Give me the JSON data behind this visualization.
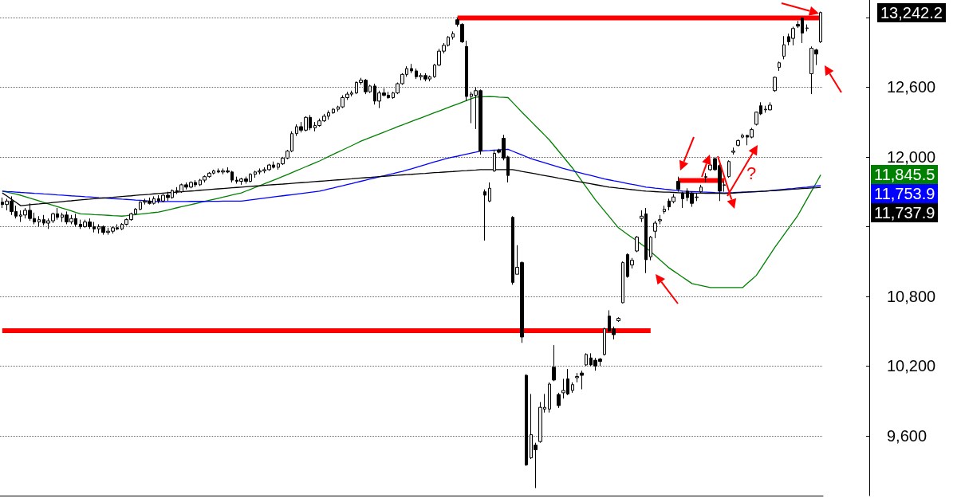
{
  "chart_data": {
    "type": "candlestick",
    "color": "#000000",
    "categories": [
      null,
      null,
      null,
      null,
      null,
      null,
      null,
      null,
      null,
      null,
      null,
      null,
      null,
      null,
      null,
      null,
      null,
      null,
      null,
      null,
      null,
      null,
      null,
      null,
      null,
      null,
      null,
      null,
      null,
      null,
      null,
      null,
      null,
      null,
      null,
      null,
      null,
      null,
      null,
      null,
      null,
      null,
      null,
      null,
      null,
      null,
      null,
      null,
      null,
      null,
      null,
      null,
      null,
      null,
      null,
      null,
      null,
      null,
      null,
      null,
      null,
      null,
      null,
      null,
      null,
      null,
      null,
      null,
      null,
      null,
      null,
      null,
      null,
      null,
      null,
      null,
      null,
      null,
      null,
      null,
      null,
      null,
      null,
      null,
      null,
      null,
      null,
      null,
      null,
      null,
      null,
      null,
      null,
      null,
      null,
      null,
      null,
      null,
      null,
      null,
      null,
      null,
      null,
      null,
      null,
      null,
      null,
      null,
      null,
      null,
      null,
      null,
      null,
      null,
      null,
      null,
      null,
      null,
      null,
      null,
      null,
      null,
      null,
      null,
      null,
      null,
      null,
      null,
      null,
      null,
      null,
      null,
      null,
      null,
      null,
      null,
      null,
      null,
      null,
      null,
      null,
      null,
      null,
      null,
      null,
      null,
      null,
      null,
      null,
      null,
      null,
      null,
      null,
      null,
      null,
      null,
      null,
      null,
      null,
      null,
      null,
      null,
      null,
      null,
      null,
      null,
      null,
      null,
      null,
      null,
      null,
      null,
      null,
      null,
      null,
      null,
      null,
      null,
      null
    ],
    "ohlc": [
      [
        11610,
        11650,
        11560,
        11590
      ],
      [
        11590,
        11640,
        11540,
        11620
      ],
      [
        11620,
        11660,
        11500,
        11530
      ],
      [
        11530,
        11580,
        11470,
        11490
      ],
      [
        11490,
        11540,
        11440,
        11500
      ],
      [
        11500,
        11560,
        11470,
        11540
      ],
      [
        11540,
        11600,
        11450,
        11470
      ],
      [
        11470,
        11520,
        11420,
        11440
      ],
      [
        11440,
        11490,
        11400,
        11460
      ],
      [
        11460,
        11500,
        11410,
        11430
      ],
      [
        11430,
        11470,
        11380,
        11450
      ],
      [
        11450,
        11520,
        11430,
        11510
      ],
      [
        11510,
        11560,
        11460,
        11480
      ],
      [
        11480,
        11520,
        11440,
        11500
      ],
      [
        11500,
        11530,
        11420,
        11440
      ],
      [
        11440,
        11500,
        11420,
        11470
      ],
      [
        11470,
        11510,
        11400,
        11420
      ],
      [
        11420,
        11460,
        11380,
        11400
      ],
      [
        11400,
        11460,
        11390,
        11440
      ],
      [
        11440,
        11470,
        11380,
        11400
      ],
      [
        11400,
        11440,
        11350,
        11380
      ],
      [
        11380,
        11420,
        11340,
        11400
      ],
      [
        11400,
        11410,
        11330,
        11350
      ],
      [
        11350,
        11390,
        11330,
        11360
      ],
      [
        11360,
        11400,
        11340,
        11390
      ],
      [
        11390,
        11420,
        11370,
        11380
      ],
      [
        11380,
        11430,
        11370,
        11420
      ],
      [
        11420,
        11470,
        11410,
        11460
      ],
      [
        11460,
        11520,
        11450,
        11510
      ],
      [
        11510,
        11560,
        11500,
        11550
      ],
      [
        11550,
        11620,
        11540,
        11610
      ],
      [
        11610,
        11640,
        11590,
        11620
      ],
      [
        11620,
        11650,
        11590,
        11600
      ],
      [
        11600,
        11660,
        11590,
        11640
      ],
      [
        11640,
        11670,
        11600,
        11620
      ],
      [
        11620,
        11680,
        11610,
        11670
      ],
      [
        11670,
        11700,
        11620,
        11650
      ],
      [
        11650,
        11720,
        11640,
        11710
      ],
      [
        11710,
        11740,
        11680,
        11700
      ],
      [
        11700,
        11770,
        11690,
        11760
      ],
      [
        11760,
        11780,
        11720,
        11740
      ],
      [
        11740,
        11790,
        11730,
        11780
      ],
      [
        11780,
        11800,
        11740,
        11760
      ],
      [
        11760,
        11810,
        11750,
        11800
      ],
      [
        11800,
        11840,
        11780,
        11830
      ],
      [
        11830,
        11870,
        11820,
        11860
      ],
      [
        11860,
        11890,
        11850,
        11880
      ],
      [
        11880,
        11900,
        11860,
        11870
      ],
      [
        11870,
        11900,
        11850,
        11880
      ],
      [
        11880,
        11910,
        11860,
        11870
      ],
      [
        11870,
        11880,
        11780,
        11800
      ],
      [
        11800,
        11830,
        11770,
        11790
      ],
      [
        11790,
        11820,
        11760,
        11810
      ],
      [
        11810,
        11830,
        11770,
        11790
      ],
      [
        11790,
        11860,
        11780,
        11850
      ],
      [
        11850,
        11880,
        11820,
        11870
      ],
      [
        11870,
        11900,
        11850,
        11880
      ],
      [
        11880,
        11910,
        11860,
        11890
      ],
      [
        11890,
        11940,
        11880,
        11930
      ],
      [
        11930,
        11960,
        11900,
        11910
      ],
      [
        11910,
        11950,
        11890,
        11940
      ],
      [
        11940,
        12000,
        11930,
        11990
      ],
      [
        11990,
        12060,
        11980,
        12050
      ],
      [
        12050,
        12220,
        12040,
        12200
      ],
      [
        12200,
        12280,
        12180,
        12260
      ],
      [
        12260,
        12300,
        12210,
        12230
      ],
      [
        12230,
        12350,
        12220,
        12340
      ],
      [
        12340,
        12360,
        12230,
        12250
      ],
      [
        12250,
        12300,
        12220,
        12270
      ],
      [
        12270,
        12330,
        12260,
        12310
      ],
      [
        12310,
        12370,
        12300,
        12350
      ],
      [
        12350,
        12400,
        12320,
        12380
      ],
      [
        12380,
        12420,
        12370,
        12410
      ],
      [
        12410,
        12440,
        12390,
        12430
      ],
      [
        12430,
        12530,
        12420,
        12510
      ],
      [
        12510,
        12560,
        12490,
        12540
      ],
      [
        12540,
        12570,
        12520,
        12550
      ],
      [
        12550,
        12650,
        12540,
        12640
      ],
      [
        12640,
        12680,
        12620,
        12660
      ],
      [
        12660,
        12670,
        12540,
        12560
      ],
      [
        12560,
        12620,
        12550,
        12610
      ],
      [
        12610,
        12630,
        12450,
        12480
      ],
      [
        12480,
        12570,
        12420,
        12550
      ],
      [
        12550,
        12590,
        12520,
        12530
      ],
      [
        12530,
        12560,
        12500,
        12510
      ],
      [
        12510,
        12560,
        12500,
        12550
      ],
      [
        12550,
        12640,
        12540,
        12630
      ],
      [
        12630,
        12720,
        12620,
        12710
      ],
      [
        12710,
        12780,
        12690,
        12760
      ],
      [
        12760,
        12800,
        12720,
        12740
      ],
      [
        12740,
        12760,
        12670,
        12690
      ],
      [
        12690,
        12720,
        12660,
        12700
      ],
      [
        12700,
        12720,
        12650,
        12670
      ],
      [
        12670,
        12700,
        12650,
        12690
      ],
      [
        12690,
        12800,
        12680,
        12790
      ],
      [
        12790,
        12930,
        12780,
        12910
      ],
      [
        12910,
        12980,
        12890,
        12960
      ],
      [
        12960,
        13040,
        12950,
        13030
      ],
      [
        13030,
        13080,
        13010,
        13060
      ],
      [
        13180,
        13200,
        13120,
        13140
      ],
      [
        13140,
        13150,
        12980,
        12990
      ],
      [
        12950,
        13000,
        12480,
        12520
      ],
      [
        12520,
        12560,
        12290,
        12540
      ],
      [
        12530,
        12600,
        12240,
        12570
      ],
      [
        12570,
        12580,
        12020,
        12050
      ],
      [
        11700,
        11720,
        11280,
        11670
      ],
      [
        11620,
        11780,
        11610,
        11730
      ],
      [
        11880,
        12060,
        11870,
        12030
      ],
      [
        12060,
        12070,
        12030,
        12040
      ],
      [
        12160,
        12190,
        11970,
        11990
      ],
      [
        12000,
        12010,
        11780,
        11840
      ],
      [
        11480,
        11490,
        10900,
        10920
      ],
      [
        10990,
        11240,
        10990,
        11050
      ],
      [
        11090,
        11100,
        10400,
        10450
      ],
      [
        10120,
        10130,
        9340,
        9350
      ],
      [
        9410,
        9960,
        9400,
        9610
      ],
      [
        9520,
        9540,
        9150,
        9480
      ],
      [
        9550,
        9890,
        9540,
        9845
      ],
      [
        9830,
        9960,
        9800,
        9845
      ],
      [
        9830,
        10060,
        9800,
        10045
      ],
      [
        10190,
        10380,
        10070,
        10080
      ],
      [
        9955,
        9970,
        9840,
        9860
      ],
      [
        9970,
        10090,
        9920,
        9990
      ],
      [
        10090,
        10175,
        9950,
        9960
      ],
      [
        9990,
        10060,
        9970,
        10040
      ],
      [
        10100,
        10140,
        10060,
        10110
      ],
      [
        10140,
        10160,
        10000,
        10120
      ],
      [
        10210,
        10310,
        10200,
        10300
      ],
      [
        10270,
        10310,
        10200,
        10210
      ],
      [
        10250,
        10270,
        10160,
        10200
      ],
      [
        10260,
        10270,
        10200,
        10240
      ],
      [
        10300,
        10530,
        10290,
        10520
      ],
      [
        10630,
        10680,
        10490,
        10500
      ],
      [
        10520,
        10540,
        10430,
        10470
      ],
      [
        10590,
        10620,
        10580,
        10610
      ],
      [
        10745,
        11100,
        10740,
        11090
      ],
      [
        11160,
        11170,
        10960,
        10970
      ],
      [
        11070,
        11130,
        11040,
        11110
      ],
      [
        11190,
        11320,
        11180,
        11310
      ],
      [
        11470,
        11540,
        11440,
        11490
      ],
      [
        11510,
        11560,
        11000,
        11115
      ],
      [
        11140,
        11320,
        11110,
        11310
      ],
      [
        11360,
        11450,
        11300,
        11430
      ],
      [
        11450,
        11500,
        11420,
        11460
      ],
      [
        11530,
        11580,
        11510,
        11550
      ],
      [
        11620,
        11640,
        11540,
        11570
      ],
      [
        11615,
        11680,
        11600,
        11655
      ],
      [
        11790,
        11830,
        11700,
        11720
      ],
      [
        11690,
        11700,
        11560,
        11640
      ],
      [
        11705,
        11730,
        11620,
        11650
      ],
      [
        11685,
        11700,
        11570,
        11600
      ],
      [
        11650,
        11690,
        11620,
        11655
      ],
      [
        11700,
        11760,
        11690,
        11740
      ],
      [
        11825,
        11860,
        11780,
        11830
      ],
      [
        11890,
        11950,
        11880,
        11930
      ],
      [
        11985,
        12000,
        11880,
        11890
      ],
      [
        11925,
        11940,
        11620,
        11705
      ],
      [
        11755,
        11790,
        11700,
        11760
      ],
      [
        11830,
        11970,
        11820,
        11960
      ],
      [
        12040,
        12080,
        12020,
        12050
      ],
      [
        12100,
        12150,
        12090,
        12140
      ],
      [
        12170,
        12200,
        12160,
        12185
      ],
      [
        12185,
        12190,
        12100,
        12170
      ],
      [
        12170,
        12250,
        12160,
        12235
      ],
      [
        12280,
        12390,
        12270,
        12385
      ],
      [
        12440,
        12470,
        12360,
        12370
      ],
      [
        12405,
        12440,
        12380,
        12410
      ],
      [
        12405,
        12470,
        12400,
        12445
      ],
      [
        12570,
        12690,
        12560,
        12685
      ],
      [
        12770,
        12820,
        12740,
        12810
      ],
      [
        12865,
        13040,
        12840,
        12965
      ],
      [
        13035,
        13060,
        12960,
        12990
      ],
      [
        13020,
        13120,
        12960,
        13105
      ],
      [
        13140,
        13170,
        13110,
        13125
      ],
      [
        13195,
        13200,
        12980,
        13065
      ],
      [
        13105,
        13140,
        13080,
        13110
      ],
      [
        12715,
        12950,
        12540,
        12935
      ],
      [
        12920,
        12930,
        12790,
        12885
      ],
      [
        12990,
        13250,
        12980,
        13242.2
      ]
    ],
    "series": [
      {
        "type": "line",
        "color": "#008000",
        "values": [
          11705,
          11696,
          11688,
          11679,
          11670,
          11658,
          11645,
          11633,
          11621,
          11608,
          11596,
          11584,
          11572,
          11559,
          11547,
          11535,
          11522,
          11510,
          11508,
          11506,
          11503,
          11501,
          11499,
          11497,
          11494,
          11492,
          11490,
          11494,
          11499,
          11503,
          11508,
          11512,
          11516,
          11521,
          11525,
          11534,
          11543,
          11553,
          11562,
          11571,
          11580,
          11589,
          11598,
          11608,
          11617,
          11626,
          11635,
          11644,
          11653,
          11663,
          11672,
          11681,
          11690,
          11706,
          11721,
          11737,
          11752,
          11768,
          11784,
          11799,
          11815,
          11832,
          11848,
          11865,
          11882,
          11898,
          11915,
          11932,
          11948,
          11965,
          11984,
          12003,
          12022,
          12041,
          12059,
          12078,
          12097,
          12116,
          12135,
          12151,
          12166,
          12182,
          12197,
          12213,
          12229,
          12244,
          12260,
          12275,
          12290,
          12305,
          12320,
          12335,
          12350,
          12365,
          12380,
          12395,
          12410,
          12425,
          12440,
          12455,
          12470,
          12485,
          12500,
          12515,
          12517,
          12518,
          12520,
          12518,
          12515,
          12513,
          12510,
          12468,
          12427,
          12385,
          12345,
          12305,
          12265,
          12225,
          12185,
          12145,
          12097,
          12049,
          12001,
          11953,
          11905,
          11850,
          11795,
          11740,
          11685,
          11630,
          11582,
          11534,
          11486,
          11438,
          11390,
          11362,
          11333,
          11305,
          11277,
          11248,
          11220,
          11185,
          11150,
          11115,
          11080,
          11045,
          11018,
          10991,
          10964,
          10937,
          10910,
          10901,
          10893,
          10884,
          10875,
          10875,
          10875,
          10875,
          10875,
          10875,
          10875,
          10875,
          10910,
          10945,
          10980,
          11040,
          11100,
          11160,
          11220,
          11275,
          11330,
          11385,
          11440,
          11495,
          11565,
          11635,
          11705,
          11775,
          11845.5
        ]
      },
      {
        "type": "line",
        "color": "#0000ff",
        "values": [
          11705,
          11702,
          11700,
          11697,
          11694,
          11692,
          11689,
          11686,
          11684,
          11681,
          11679,
          11676,
          11673,
          11671,
          11668,
          11665,
          11663,
          11660,
          11657,
          11655,
          11652,
          11649,
          11647,
          11644,
          11641,
          11639,
          11636,
          11634,
          11631,
          11628,
          11626,
          11623,
          11620,
          11618,
          11615,
          11615,
          11616,
          11616,
          11616,
          11616,
          11616,
          11617,
          11617,
          11617,
          11617,
          11618,
          11618,
          11618,
          11619,
          11619,
          11619,
          11620,
          11620,
          11625,
          11630,
          11635,
          11640,
          11645,
          11650,
          11655,
          11660,
          11665,
          11670,
          11675,
          11680,
          11685,
          11690,
          11695,
          11700,
          11705,
          11714,
          11724,
          11733,
          11743,
          11752,
          11762,
          11771,
          11781,
          11790,
          11799,
          11809,
          11818,
          11828,
          11837,
          11847,
          11856,
          11866,
          11875,
          11887,
          11898,
          11910,
          11922,
          11933,
          11945,
          11957,
          11968,
          11980,
          11989,
          11998,
          12006,
          12015,
          12024,
          12033,
          12041,
          12050,
          12053,
          12055,
          12058,
          12060,
          12063,
          12065,
          12049,
          12033,
          12017,
          12001,
          11985,
          11973,
          11961,
          11949,
          11936,
          11924,
          11912,
          11900,
          11890,
          11880,
          11870,
          11860,
          11850,
          11840,
          11830,
          11820,
          11810,
          11802,
          11794,
          11787,
          11779,
          11771,
          11763,
          11756,
          11748,
          11740,
          11736,
          11731,
          11727,
          11722,
          11718,
          11714,
          11709,
          11705,
          11703,
          11702,
          11700,
          11698,
          11697,
          11695,
          11693,
          11692,
          11690,
          11692,
          11693,
          11695,
          11697,
          11698,
          11700,
          11702,
          11703,
          11705,
          11709,
          11713,
          11717,
          11721,
          11725,
          11728,
          11732,
          11736,
          11740,
          11745,
          11749,
          11753.9
        ]
      },
      {
        "type": "line",
        "color": "#000000",
        "values": [
          11690,
          11663,
          11635,
          11608,
          11580,
          11584,
          11588,
          11592,
          11595,
          11599,
          11603,
          11607,
          11611,
          11615,
          11619,
          11622,
          11626,
          11630,
          11633,
          11636,
          11640,
          11643,
          11646,
          11649,
          11652,
          11656,
          11659,
          11662,
          11665,
          11669,
          11672,
          11675,
          11678,
          11682,
          11685,
          11688,
          11691,
          11694,
          11697,
          11700,
          11703,
          11706,
          11709,
          11713,
          11716,
          11719,
          11722,
          11725,
          11728,
          11731,
          11734,
          11737,
          11740,
          11743,
          11746,
          11749,
          11752,
          11755,
          11758,
          11761,
          11764,
          11766,
          11769,
          11772,
          11775,
          11778,
          11781,
          11784,
          11787,
          11790,
          11793,
          11796,
          11799,
          11802,
          11805,
          11808,
          11811,
          11815,
          11818,
          11821,
          11824,
          11827,
          11830,
          11833,
          11836,
          11839,
          11842,
          11845,
          11848,
          11850,
          11853,
          11856,
          11858,
          11861,
          11864,
          11866,
          11869,
          11872,
          11874,
          11877,
          11880,
          11882,
          11885,
          11887,
          11890,
          11890,
          11890,
          11890,
          11890,
          11890,
          11890,
          11890,
          11883,
          11875,
          11868,
          11861,
          11854,
          11846,
          11839,
          11832,
          11825,
          11817,
          11810,
          11803,
          11796,
          11789,
          11782,
          11775,
          11768,
          11761,
          11754,
          11747,
          11740,
          11736,
          11731,
          11727,
          11723,
          11718,
          11714,
          11709,
          11705,
          11703,
          11701,
          11699,
          11697,
          11696,
          11694,
          11692,
          11690,
          11689,
          11689,
          11688,
          11688,
          11687,
          11687,
          11686,
          11686,
          11685,
          11687,
          11689,
          11692,
          11694,
          11696,
          11698,
          11700,
          11703,
          11705,
          11708,
          11711,
          11713,
          11716,
          11719,
          11722,
          11724,
          11727,
          11730,
          11733,
          11735,
          11737.9
        ]
      },
      {
        "type": "line",
        "color": "#ff0000",
        "values": [
          null,
          null,
          null,
          null,
          null,
          null,
          null,
          null,
          null,
          null,
          null,
          null,
          null,
          null,
          null,
          null,
          null,
          null,
          null,
          null,
          null,
          null,
          null,
          null,
          null,
          null,
          null,
          null,
          null,
          null,
          null,
          null,
          null,
          null,
          null,
          null,
          null,
          null,
          null,
          null,
          null,
          null,
          null,
          null,
          null,
          null,
          null,
          null,
          null,
          null,
          null,
          null,
          null,
          null,
          null,
          null,
          null,
          null,
          null,
          null,
          null,
          null,
          null,
          null,
          null,
          null,
          null,
          null,
          null,
          null,
          null,
          null,
          null,
          null,
          null,
          null,
          null,
          null,
          null,
          null,
          null,
          null,
          null,
          null,
          null,
          null,
          null,
          null,
          null,
          null,
          null,
          null,
          null,
          null,
          null,
          null,
          null,
          null,
          null,
          13195,
          13195,
          13195,
          13195,
          13195,
          13195,
          13195,
          13195,
          13195,
          13195,
          13195,
          13195,
          13195,
          13195,
          13195,
          13195,
          13195,
          13195,
          13195,
          13195,
          13195,
          13195,
          13195,
          13195,
          13195,
          13195,
          13195,
          13195,
          13195,
          13195,
          13195,
          13195,
          13195,
          13195,
          13195,
          13195,
          13195,
          13195,
          13195,
          13195,
          13195,
          13195,
          13195,
          13195,
          13195,
          13195,
          13195,
          13195,
          13195,
          13195,
          13195,
          13195,
          13195,
          13195,
          13195,
          13195,
          13195,
          13195,
          13195,
          13195,
          13195,
          13195,
          13195,
          13195,
          13195,
          13195,
          13195,
          13195,
          13195,
          13195,
          13195,
          13195,
          13195,
          13195,
          13195,
          13195,
          13195,
          13195,
          13195,
          13195
        ]
      },
      {
        "type": "line",
        "color": "#ff0000",
        "values": [
          10505,
          10505,
          10505,
          10505,
          10505,
          10505,
          10505,
          10505,
          10505,
          10505,
          10505,
          10505,
          10505,
          10505,
          10505,
          10505,
          10505,
          10505,
          10505,
          10505,
          10505,
          10505,
          10505,
          10505,
          10505,
          10505,
          10505,
          10505,
          10505,
          10505,
          10505,
          10505,
          10505,
          10505,
          10505,
          10505,
          10505,
          10505,
          10505,
          10505,
          10505,
          10505,
          10505,
          10505,
          10505,
          10505,
          10505,
          10505,
          10505,
          10505,
          10505,
          10505,
          10505,
          10505,
          10505,
          10505,
          10505,
          10505,
          10505,
          10505,
          10505,
          10505,
          10505,
          10505,
          10505,
          10505,
          10505,
          10505,
          10505,
          10505,
          10505,
          10505,
          10505,
          10505,
          10505,
          10505,
          10505,
          10505,
          10505,
          10505,
          10505,
          10505,
          10505,
          10505,
          10505,
          10505,
          10505,
          10505,
          10505,
          10505,
          10505,
          10505,
          10505,
          10505,
          10505,
          10505,
          10505,
          10505,
          10505,
          10505,
          10505,
          10505,
          10505,
          10505,
          10505,
          10505,
          10505,
          10505,
          10505,
          10505,
          10505,
          10505,
          10505,
          10505,
          10505,
          10505,
          10505,
          10505,
          10505,
          10505,
          10505,
          10505,
          10505,
          10505,
          10505,
          10505,
          10505,
          10505,
          10505,
          10505,
          10505,
          10505,
          10505,
          10505,
          10505,
          10505,
          10505,
          10505,
          10505,
          10505,
          10505,
          10505,
          null,
          null,
          null,
          null,
          null,
          null,
          null,
          null,
          null,
          null,
          null,
          null,
          null,
          null,
          null,
          null,
          null,
          null,
          null,
          null,
          null,
          null,
          null,
          null,
          null,
          null,
          null,
          null,
          null,
          null,
          null,
          null,
          null,
          null,
          null,
          null,
          null
        ]
      },
      {
        "type": "line",
        "color": "#ff0000",
        "values": [
          null,
          null,
          null,
          null,
          null,
          null,
          null,
          null,
          null,
          null,
          null,
          null,
          null,
          null,
          null,
          null,
          null,
          null,
          null,
          null,
          null,
          null,
          null,
          null,
          null,
          null,
          null,
          null,
          null,
          null,
          null,
          null,
          null,
          null,
          null,
          null,
          null,
          null,
          null,
          null,
          null,
          null,
          null,
          null,
          null,
          null,
          null,
          null,
          null,
          null,
          null,
          null,
          null,
          null,
          null,
          null,
          null,
          null,
          null,
          null,
          null,
          null,
          null,
          null,
          null,
          null,
          null,
          null,
          null,
          null,
          null,
          null,
          null,
          null,
          null,
          null,
          null,
          null,
          null,
          null,
          null,
          null,
          null,
          null,
          null,
          null,
          null,
          null,
          null,
          null,
          null,
          null,
          null,
          null,
          null,
          null,
          null,
          null,
          null,
          null,
          null,
          null,
          null,
          null,
          null,
          null,
          null,
          null,
          null,
          null,
          null,
          null,
          null,
          null,
          null,
          null,
          null,
          null,
          null,
          null,
          null,
          null,
          null,
          null,
          null,
          null,
          null,
          null,
          null,
          null,
          null,
          null,
          null,
          null,
          null,
          null,
          null,
          null,
          null,
          null,
          null,
          null,
          null,
          null,
          null,
          null,
          null,
          11797,
          11797,
          11797,
          11797,
          11797,
          11797,
          11797,
          11797,
          11797,
          11797,
          11797,
          null,
          null,
          null,
          null,
          null,
          null,
          null,
          null,
          null,
          null,
          null,
          null,
          null,
          null,
          null,
          null,
          null,
          null,
          null,
          null,
          null
        ]
      }
    ],
    "annotations": [
      "?",
      "13,242.2",
      "11,845.5",
      "11,753.9",
      "11,737.9"
    ],
    "ylim": [
      9085,
      13350
    ],
    "yticks": [
      {
        "value": 9600,
        "label": "9,600"
      },
      {
        "value": 10200,
        "label": "10,200"
      },
      {
        "value": 10800,
        "label": "10,800"
      },
      {
        "value": 11400,
        "label": null
      },
      {
        "value": 12000,
        "label": "12,000"
      },
      {
        "value": 12600,
        "label": "12,600"
      },
      {
        "value": 13200,
        "label": null
      }
    ],
    "grid": "y",
    "tick_labels": "y"
  }
}
